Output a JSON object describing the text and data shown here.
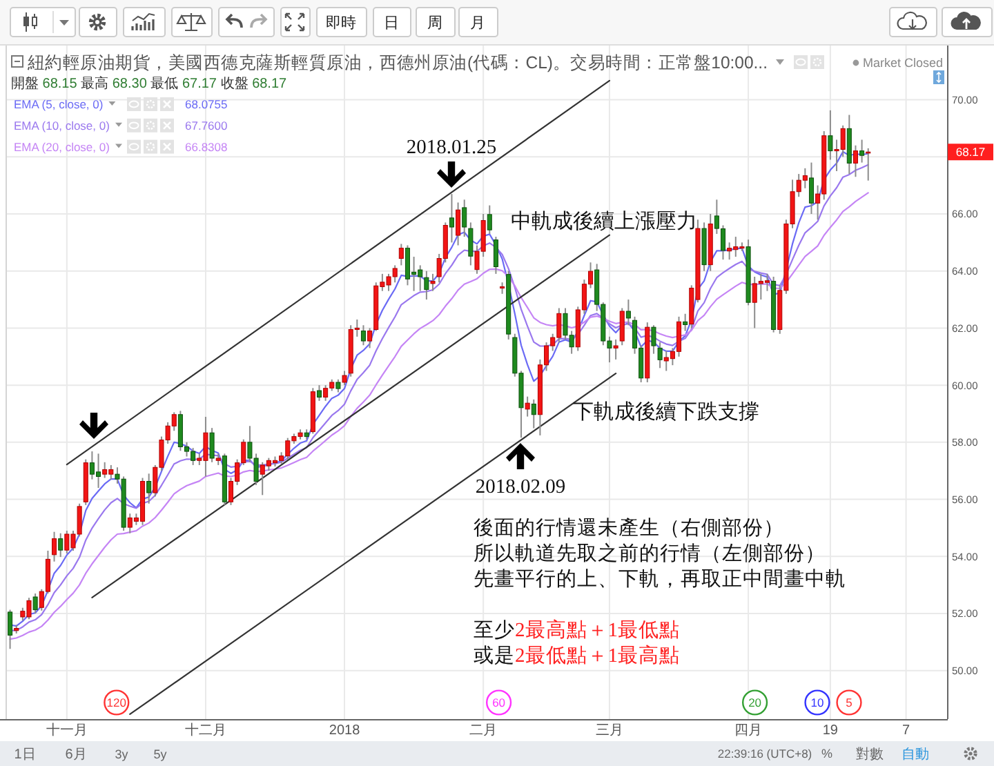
{
  "chart_data": {
    "type": "candlestick",
    "title": "紐約輕原油期貨，美國西德克薩斯輕質原油，西德州原油(代碼：CL)。交易時間：正常盤10:00...",
    "subtitle": "開盤 68.15 最高 68.30 最低 67.17 收盤 68.17",
    "categories": [
      null,
      null,
      null,
      null,
      null,
      null,
      null,
      null,
      null,
      "十一月",
      null,
      null,
      null,
      null,
      null,
      null,
      null,
      null,
      null,
      null,
      null,
      null,
      null,
      null,
      null,
      null,
      null,
      null,
      null,
      null,
      null,
      "十二月",
      null,
      null,
      null,
      null,
      null,
      null,
      null,
      null,
      null,
      null,
      null,
      null,
      null,
      null,
      null,
      null,
      null,
      null,
      null,
      null,
      null,
      "2018",
      null,
      null,
      null,
      null,
      null,
      null,
      null,
      null,
      null,
      null,
      null,
      null,
      null,
      null,
      null,
      null,
      null,
      null,
      null,
      null,
      null,
      "二月",
      null,
      null,
      null,
      null,
      null,
      null,
      null,
      null,
      null,
      null,
      null,
      null,
      null,
      null,
      null,
      null,
      null,
      null,
      null,
      "三月",
      null,
      null,
      null,
      null,
      null,
      null,
      null,
      null,
      null,
      null,
      null,
      null,
      null,
      null,
      null,
      null,
      null,
      null,
      null,
      null,
      null,
      "四月",
      null,
      null,
      null,
      null,
      null,
      null,
      null,
      null,
      null,
      null,
      null,
      null,
      "19",
      null,
      null,
      null,
      null,
      null,
      null,
      null,
      null,
      null,
      null,
      null,
      "7",
      null,
      null,
      null,
      null,
      null,
      null
    ],
    "ohlc": [
      [
        52.05,
        52.13,
        50.76,
        51.24
      ],
      [
        51.4,
        51.6,
        51.3,
        51.48
      ],
      [
        51.88,
        52.2,
        51.75,
        52.08
      ],
      [
        51.88,
        52.55,
        51.8,
        52.45
      ],
      [
        52.58,
        52.7,
        52.0,
        52.13
      ],
      [
        52.21,
        52.85,
        52.1,
        52.77
      ],
      [
        52.77,
        54.2,
        52.7,
        53.9
      ],
      [
        54.06,
        54.86,
        53.82,
        54.62
      ],
      [
        54.62,
        54.81,
        53.98,
        54.22
      ],
      [
        54.22,
        54.9,
        54.1,
        54.78
      ],
      [
        54.3,
        54.9,
        54.2,
        54.78
      ],
      [
        54.78,
        55.85,
        54.7,
        55.75
      ],
      [
        55.91,
        57.4,
        55.8,
        57.28
      ],
      [
        57.28,
        57.68,
        56.7,
        56.88
      ],
      [
        56.96,
        57.6,
        56.4,
        56.8
      ],
      [
        56.88,
        57.3,
        56.75,
        57.04
      ],
      [
        56.88,
        57.2,
        56.7,
        57.04
      ],
      [
        56.88,
        57.12,
        56.55,
        56.71
      ],
      [
        56.71,
        56.8,
        54.9,
        55.02
      ],
      [
        55.02,
        55.5,
        54.81,
        55.35
      ],
      [
        55.23,
        55.5,
        55.1,
        55.35
      ],
      [
        55.23,
        56.75,
        55.1,
        56.63
      ],
      [
        56.63,
        56.9,
        55.85,
        56.23
      ],
      [
        56.23,
        57.2,
        56.1,
        57.12
      ],
      [
        57.12,
        58.2,
        57.0,
        58.08
      ],
      [
        58.08,
        58.7,
        57.95,
        58.57
      ],
      [
        58.57,
        59.05,
        58.4,
        58.97
      ],
      [
        58.97,
        59.1,
        57.7,
        57.84
      ],
      [
        57.84,
        58.0,
        57.5,
        57.68
      ],
      [
        57.68,
        57.8,
        57.2,
        57.36
      ],
      [
        57.36,
        57.6,
        57.2,
        57.44
      ],
      [
        57.36,
        58.89,
        56.8,
        58.33
      ],
      [
        58.33,
        58.5,
        57.3,
        57.44
      ],
      [
        57.36,
        57.6,
        57.2,
        57.44
      ],
      [
        57.52,
        57.6,
        55.8,
        55.91
      ],
      [
        55.91,
        56.75,
        55.8,
        56.63
      ],
      [
        56.63,
        57.4,
        56.5,
        57.28
      ],
      [
        57.28,
        58.1,
        57.2,
        58.0
      ],
      [
        58.0,
        58.57,
        57.3,
        57.44
      ],
      [
        57.44,
        57.6,
        56.5,
        56.63
      ],
      [
        56.88,
        57.3,
        56.15,
        57.2
      ],
      [
        57.17,
        57.45,
        57.0,
        57.36
      ],
      [
        57.28,
        57.5,
        57.15,
        57.36
      ],
      [
        57.36,
        57.65,
        57.25,
        57.52
      ],
      [
        57.52,
        58.15,
        57.4,
        58.05
      ],
      [
        58.05,
        58.3,
        57.95,
        58.2
      ],
      [
        58.2,
        58.45,
        58.1,
        58.33
      ],
      [
        58.33,
        58.45,
        58.1,
        58.2
      ],
      [
        58.37,
        59.9,
        58.3,
        59.77
      ],
      [
        59.81,
        60.0,
        59.45,
        59.58
      ],
      [
        59.58,
        60.0,
        59.45,
        59.89
      ],
      [
        59.9,
        60.2,
        59.8,
        60.1
      ],
      [
        60.1,
        60.2,
        59.75,
        59.88
      ],
      [
        60.1,
        60.5,
        60.0,
        60.34
      ],
      [
        60.42,
        62.1,
        60.3,
        61.95
      ],
      [
        61.95,
        62.3,
        61.7,
        62.0
      ],
      [
        61.9,
        62.1,
        61.4,
        61.55
      ],
      [
        61.55,
        62.0,
        61.3,
        61.9
      ],
      [
        61.95,
        63.6,
        61.9,
        63.48
      ],
      [
        63.45,
        63.9,
        63.3,
        63.61
      ],
      [
        63.51,
        63.9,
        63.3,
        63.8
      ],
      [
        63.8,
        64.2,
        63.6,
        64.09
      ],
      [
        64.44,
        64.95,
        64.2,
        64.8
      ],
      [
        64.8,
        64.9,
        63.5,
        63.72
      ],
      [
        63.96,
        64.5,
        63.3,
        63.88
      ],
      [
        64.04,
        64.2,
        63.3,
        63.8
      ],
      [
        63.77,
        64.0,
        63.0,
        63.35
      ],
      [
        63.56,
        63.9,
        63.3,
        63.64
      ],
      [
        63.8,
        64.6,
        63.6,
        64.44
      ],
      [
        64.44,
        65.7,
        64.3,
        65.6
      ],
      [
        65.86,
        66.7,
        65.0,
        65.54
      ],
      [
        65.25,
        66.4,
        64.9,
        66.14
      ],
      [
        66.22,
        66.5,
        65.2,
        65.54
      ],
      [
        65.49,
        65.7,
        64.2,
        64.52
      ],
      [
        64.05,
        64.9,
        63.9,
        64.69
      ],
      [
        64.69,
        66.0,
        64.5,
        65.77
      ],
      [
        65.98,
        66.3,
        65.3,
        65.44
      ],
      [
        65.09,
        65.2,
        63.9,
        64.15
      ],
      [
        63.4,
        63.6,
        63.2,
        63.45
      ],
      [
        63.88,
        64.0,
        61.6,
        61.79
      ],
      [
        61.67,
        61.8,
        60.3,
        60.42
      ],
      [
        60.42,
        60.5,
        58.16,
        59.21
      ],
      [
        59.16,
        59.6,
        58.9,
        59.37
      ],
      [
        59.34,
        59.5,
        58.49,
        58.97
      ],
      [
        58.97,
        60.9,
        58.24,
        60.71
      ],
      [
        60.71,
        61.5,
        60.5,
        61.38
      ],
      [
        61.38,
        61.8,
        61.2,
        61.67
      ],
      [
        61.67,
        62.7,
        61.5,
        62.51
      ],
      [
        62.51,
        62.7,
        61.6,
        61.75
      ],
      [
        61.75,
        61.9,
        61.1,
        61.34
      ],
      [
        61.34,
        62.75,
        61.2,
        62.64
      ],
      [
        62.64,
        63.7,
        62.5,
        63.54
      ],
      [
        63.54,
        64.3,
        63.4,
        63.99
      ],
      [
        64.04,
        64.25,
        62.6,
        62.83
      ],
      [
        62.83,
        62.9,
        61.4,
        61.55
      ],
      [
        61.55,
        61.7,
        60.8,
        61.3
      ],
      [
        61.3,
        61.6,
        60.9,
        61.38
      ],
      [
        61.55,
        62.7,
        61.4,
        62.59
      ],
      [
        62.59,
        63.0,
        62.1,
        62.35
      ],
      [
        62.27,
        62.4,
        61.1,
        61.3
      ],
      [
        61.3,
        61.4,
        60.1,
        60.25
      ],
      [
        60.25,
        62.2,
        60.1,
        62.03
      ],
      [
        62.03,
        62.1,
        61.1,
        61.38
      ],
      [
        61.3,
        61.5,
        60.6,
        60.89
      ],
      [
        60.85,
        61.2,
        60.5,
        60.97
      ],
      [
        60.93,
        61.3,
        60.7,
        61.18
      ],
      [
        61.18,
        62.4,
        61.0,
        62.22
      ],
      [
        62.22,
        62.5,
        61.9,
        62.12
      ],
      [
        62.14,
        63.5,
        62.0,
        63.4
      ],
      [
        63.0,
        65.8,
        62.9,
        65.49
      ],
      [
        65.49,
        65.7,
        64.0,
        64.22
      ],
      [
        64.22,
        66.0,
        64.0,
        65.65
      ],
      [
        65.93,
        66.5,
        65.3,
        65.49
      ],
      [
        65.48,
        65.6,
        64.4,
        64.72
      ],
      [
        64.7,
        65.0,
        64.4,
        64.8
      ],
      [
        64.75,
        65.2,
        64.5,
        64.85
      ],
      [
        64.8,
        65.0,
        64.7,
        64.85
      ],
      [
        64.85,
        65.1,
        62.8,
        62.9
      ],
      [
        62.9,
        63.8,
        62.0,
        63.56
      ],
      [
        63.56,
        63.9,
        63.0,
        63.64
      ],
      [
        63.6,
        63.9,
        63.3,
        63.66
      ],
      [
        63.64,
        63.8,
        61.85,
        61.95
      ],
      [
        61.95,
        63.5,
        61.8,
        63.32
      ],
      [
        63.32,
        65.8,
        63.2,
        65.65
      ],
      [
        65.65,
        67.2,
        65.5,
        66.78
      ],
      [
        66.78,
        67.4,
        66.6,
        67.18
      ],
      [
        67.18,
        67.6,
        66.9,
        67.34
      ],
      [
        67.26,
        67.8,
        66.0,
        66.38
      ],
      [
        66.38,
        67.0,
        65.8,
        66.7
      ],
      [
        66.7,
        68.9,
        66.5,
        68.74
      ],
      [
        68.74,
        69.63,
        67.9,
        68.21
      ],
      [
        68.21,
        68.6,
        67.5,
        68.26
      ],
      [
        68.26,
        69.1,
        68.0,
        68.99
      ],
      [
        68.99,
        69.47,
        67.4,
        67.78
      ],
      [
        67.78,
        68.4,
        67.3,
        68.21
      ],
      [
        68.21,
        68.6,
        67.8,
        68.05
      ],
      [
        68.15,
        68.3,
        67.17,
        68.17
      ],
      null,
      null,
      null,
      null,
      null,
      null,
      null,
      null,
      null,
      null,
      null,
      null
    ],
    "series": [
      {
        "name": "EMA (5, close, 0)",
        "type": "line",
        "color": "#6a6af5",
        "values": [
          51.6,
          51.56,
          51.73,
          51.97,
          52.02,
          52.27,
          52.81,
          53.41,
          53.68,
          54.05,
          54.29,
          54.78,
          55.61,
          56.03,
          56.29,
          56.54,
          56.71,
          56.71,
          56.15,
          55.88,
          55.7,
          56.01,
          56.08,
          56.43,
          56.98,
          57.51,
          58.0,
          57.95,
          57.86,
          57.69,
          57.61,
          57.85,
          57.71,
          57.62,
          57.05,
          56.91,
          57.03,
          57.35,
          57.38,
          57.13,
          57.15,
          57.22,
          57.27,
          57.35,
          57.58,
          57.79,
          57.97,
          58.05,
          58.62,
          58.94,
          59.26,
          59.54,
          59.65,
          59.88,
          60.57,
          61.05,
          61.22,
          61.45,
          62.13,
          62.62,
          63.01,
          63.37,
          63.85,
          63.81,
          63.83,
          63.82,
          63.66,
          63.65,
          63.91,
          64.47,
          64.83,
          65.27,
          65.36,
          65.08,
          64.95,
          65.22,
          65.29,
          64.91,
          64.42,
          63.54,
          62.5,
          61.4,
          60.72,
          60.14,
          60.33,
          60.68,
          61.01,
          61.51,
          61.59,
          61.51,
          61.89,
          62.44,
          62.96,
          62.92,
          62.46,
          62.07,
          61.84,
          62.09,
          62.18,
          61.89,
          61.34,
          61.57,
          61.51,
          61.3,
          61.19,
          61.19,
          61.53,
          61.73,
          62.29,
          63.36,
          63.65,
          64.32,
          64.71,
          64.71,
          64.74,
          64.78,
          64.8,
          64.17,
          63.97,
          63.86,
          63.79,
          63.18,
          63.23,
          64.04,
          64.95,
          65.69,
          66.24,
          66.29,
          66.43,
          67.2,
          67.54,
          67.78,
          68.18,
          68.05,
          68.1,
          68.08,
          68.11,
          null,
          null,
          null,
          null,
          null,
          null,
          null,
          null,
          null,
          null,
          null,
          null
        ]
      },
      {
        "name": "EMA (10, close, 0)",
        "type": "line",
        "color": "#9a78ee",
        "values": [
          51.4,
          51.41,
          51.53,
          51.7,
          51.78,
          51.96,
          52.31,
          52.73,
          53.0,
          53.32,
          53.58,
          53.97,
          54.57,
          54.99,
          55.32,
          55.63,
          55.88,
          56.03,
          55.85,
          55.76,
          55.69,
          55.86,
          55.93,
          56.14,
          56.49,
          56.86,
          57.24,
          57.35,
          57.41,
          57.4,
          57.41,
          57.58,
          57.55,
          57.53,
          57.24,
          57.13,
          57.16,
          57.31,
          57.33,
          57.2,
          57.2,
          57.23,
          57.25,
          57.3,
          57.44,
          57.58,
          57.72,
          57.81,
          58.16,
          58.42,
          58.68,
          58.94,
          59.11,
          59.33,
          59.8,
          60.2,
          60.44,
          60.7,
          61.2,
          61.63,
          62.02,
          62.39,
          62.82,
          62.98,
          63.14,
          63.26,
          63.28,
          63.34,
          63.54,
          63.91,
          64.2,
          64.55,
          64.73,
          64.69,
          64.69,
          64.88,
          64.98,
          64.83,
          64.58,
          64.08,
          63.42,
          62.66,
          62.07,
          61.51,
          61.37,
          61.37,
          61.42,
          61.62,
          61.64,
          61.59,
          61.78,
          62.1,
          62.44,
          62.51,
          62.34,
          62.15,
          62.01,
          62.11,
          62.15,
          62.0,
          61.68,
          61.74,
          61.68,
          61.54,
          61.44,
          61.39,
          61.54,
          61.64,
          61.96,
          62.6,
          62.89,
          63.39,
          63.77,
          63.94,
          64.09,
          64.23,
          64.34,
          64.08,
          63.99,
          63.93,
          63.88,
          63.53,
          63.49,
          63.88,
          64.4,
          64.9,
          65.34,
          65.53,
          65.74,
          66.28,
          66.63,
          66.92,
          67.29,
          67.38,
          67.53,
          67.62,
          67.72,
          null,
          null,
          null,
          null,
          null,
          null,
          null,
          null,
          null,
          null,
          null,
          null
        ]
      },
      {
        "name": "EMA (20, close, 0)",
        "type": "line",
        "color": "#c585f5",
        "values": [
          51.1,
          51.14,
          51.23,
          51.35,
          51.42,
          51.55,
          51.77,
          52.04,
          52.25,
          52.49,
          52.71,
          53.0,
          53.41,
          53.74,
          54.03,
          54.32,
          54.58,
          54.78,
          54.8,
          54.85,
          54.9,
          55.06,
          55.17,
          55.36,
          55.62,
          55.9,
          56.19,
          56.35,
          56.48,
          56.56,
          56.64,
          56.8,
          56.86,
          56.92,
          56.82,
          56.8,
          56.85,
          56.96,
          57.01,
          56.97,
          56.99,
          57.03,
          57.06,
          57.1,
          57.19,
          57.29,
          57.39,
          57.47,
          57.69,
          57.87,
          58.06,
          58.25,
          58.4,
          58.58,
          58.9,
          59.19,
          59.41,
          59.65,
          60.01,
          60.35,
          60.68,
          61.0,
          61.36,
          61.58,
          61.8,
          61.99,
          62.12,
          62.26,
          62.47,
          62.77,
          63.03,
          63.33,
          63.54,
          63.63,
          63.73,
          63.92,
          64.06,
          64.07,
          64.01,
          63.8,
          63.48,
          63.07,
          62.72,
          62.36,
          62.2,
          62.12,
          62.08,
          62.12,
          62.08,
          62.01,
          62.07,
          62.21,
          62.38,
          62.42,
          62.34,
          62.24,
          62.16,
          62.2,
          62.21,
          62.12,
          61.94,
          61.95,
          61.9,
          61.8,
          61.72,
          61.67,
          61.72,
          61.76,
          61.92,
          62.26,
          62.45,
          62.75,
          63.01,
          63.17,
          63.32,
          63.47,
          63.6,
          63.53,
          63.53,
          63.54,
          63.55,
          63.4,
          63.39,
          63.6,
          63.9,
          64.21,
          64.51,
          64.69,
          64.88,
          65.25,
          65.53,
          65.79,
          66.09,
          66.25,
          66.44,
          66.59,
          66.74,
          null,
          null,
          null,
          null,
          null,
          null,
          null,
          null,
          null,
          null,
          null,
          null
        ]
      },
      {
        "type": "line",
        "color": "#333333",
        "values": [
          null,
          null,
          null,
          null,
          null,
          null,
          null,
          null,
          null,
          57.22,
          null,
          null,
          null,
          null,
          null,
          null,
          null,
          null,
          null,
          null,
          null,
          null,
          null,
          null,
          null,
          null,
          null,
          null,
          null,
          null,
          null,
          null,
          null,
          null,
          null,
          null,
          null,
          null,
          null,
          null,
          null,
          null,
          null,
          null,
          null,
          null,
          null,
          null,
          null,
          null,
          null,
          null,
          null,
          null,
          null,
          null,
          null,
          null,
          null,
          null,
          null,
          null,
          null,
          null,
          null,
          null,
          null,
          null,
          null,
          null,
          null,
          null,
          null,
          null,
          null,
          null,
          null,
          null,
          null,
          null,
          null,
          null,
          null,
          null,
          null,
          null,
          null,
          null,
          null,
          null,
          null,
          null,
          null,
          null,
          null,
          70.67,
          null,
          null,
          null,
          null,
          null,
          null,
          null,
          null,
          null,
          null,
          null,
          null,
          null,
          null,
          null,
          null,
          null,
          null,
          null,
          null,
          null,
          null,
          null,
          null,
          null,
          null,
          null,
          null,
          null,
          null,
          null,
          null,
          null,
          null,
          null,
          null,
          null,
          null,
          null,
          null,
          null,
          null,
          null,
          null,
          null,
          null,
          null,
          null,
          null,
          null,
          null,
          null,
          null
        ]
      },
      {
        "type": "line",
        "color": "#333333",
        "values": [
          null,
          null,
          null,
          null,
          null,
          null,
          null,
          null,
          null,
          null,
          null,
          null,
          null,
          52.56,
          null,
          null,
          null,
          null,
          null,
          null,
          null,
          null,
          null,
          null,
          null,
          null,
          null,
          null,
          null,
          null,
          null,
          null,
          null,
          null,
          null,
          null,
          null,
          null,
          null,
          null,
          null,
          null,
          null,
          null,
          null,
          null,
          null,
          null,
          null,
          null,
          null,
          null,
          null,
          null,
          null,
          null,
          null,
          null,
          null,
          null,
          null,
          null,
          null,
          null,
          null,
          null,
          null,
          null,
          null,
          null,
          null,
          null,
          null,
          null,
          null,
          null,
          null,
          null,
          null,
          null,
          null,
          null,
          null,
          null,
          null,
          null,
          null,
          null,
          null,
          null,
          null,
          null,
          null,
          null,
          null,
          65.26,
          null,
          null,
          null,
          null,
          null,
          null,
          null,
          null,
          null,
          null,
          null,
          null,
          null,
          null,
          null,
          null,
          null,
          null,
          null,
          null,
          null,
          null,
          null,
          null,
          null,
          null,
          null,
          null,
          null,
          null,
          null,
          null,
          null,
          null,
          null,
          null,
          null,
          null,
          null,
          null,
          null,
          null,
          null,
          null,
          null,
          null,
          null,
          null,
          null,
          null,
          null,
          null,
          null
        ]
      },
      {
        "type": "line",
        "color": "#333333",
        "values": [
          null,
          null,
          null,
          null,
          null,
          null,
          null,
          null,
          null,
          null,
          null,
          null,
          null,
          null,
          null,
          null,
          null,
          null,
          null,
          48.47,
          null,
          null,
          null,
          null,
          null,
          null,
          null,
          null,
          null,
          null,
          null,
          null,
          null,
          null,
          null,
          null,
          null,
          null,
          null,
          null,
          null,
          null,
          null,
          null,
          null,
          null,
          null,
          null,
          null,
          null,
          null,
          null,
          null,
          null,
          null,
          null,
          null,
          null,
          null,
          null,
          null,
          null,
          null,
          null,
          null,
          null,
          null,
          null,
          null,
          null,
          null,
          null,
          null,
          null,
          null,
          null,
          null,
          null,
          null,
          null,
          null,
          null,
          null,
          null,
          null,
          null,
          null,
          null,
          null,
          null,
          null,
          null,
          null,
          null,
          null,
          null,
          60.41,
          null,
          null,
          null,
          null,
          null,
          null,
          null,
          null,
          null,
          null,
          null,
          null,
          null,
          null,
          null,
          null,
          null,
          null,
          null,
          null,
          null,
          null,
          null,
          null,
          null,
          null,
          null,
          null,
          null,
          null,
          null,
          null,
          null,
          null,
          null,
          null,
          null,
          null,
          null,
          null,
          null,
          null,
          null,
          null,
          null,
          null,
          null,
          null,
          null,
          null,
          null,
          null
        ]
      }
    ],
    "ylim": [
      48.3,
      71.9
    ],
    "yticks": [
      {
        "value": 50,
        "label": "50.00"
      },
      {
        "value": 52,
        "label": "52.00"
      },
      {
        "value": 54,
        "label": "54.00"
      },
      {
        "value": 56,
        "label": "56.00"
      },
      {
        "value": 58,
        "label": "58.00"
      },
      {
        "value": 60,
        "label": "60.00"
      },
      {
        "value": 62,
        "label": "62.00"
      },
      {
        "value": 64,
        "label": "64.00"
      },
      {
        "value": 66,
        "label": "66.00"
      },
      {
        "value": 68,
        "label": null
      },
      {
        "value": 70,
        "label": "70.00"
      }
    ],
    "grid": true,
    "legend": "top left",
    "annotations": [
      "2018.01.25",
      "2018.02.09",
      "中軌成後續上漲壓力",
      "下軌成後續下跌支撐",
      "後面的行情還未產生（右側部份）",
      "所以軌道先取之前的行情（左側部份）",
      "先畫平行的上、下軌，再取正中間畫中軌",
      "至少",
      "2最高點＋1最低點",
      "或是",
      "2最低點＋1最高點",
      "68.0755",
      "67.7600",
      "66.8308",
      {
        "text": "68.17",
        "y": 68.17
      },
      "120",
      "60",
      "20",
      "10",
      "5",
      "Market Closed",
      "即時",
      "日",
      "周",
      "月",
      "1日",
      "6月",
      "3y",
      "5y",
      "22:39:16 (UTC+8)",
      "%",
      "對數",
      "自動"
    ]
  }
}
